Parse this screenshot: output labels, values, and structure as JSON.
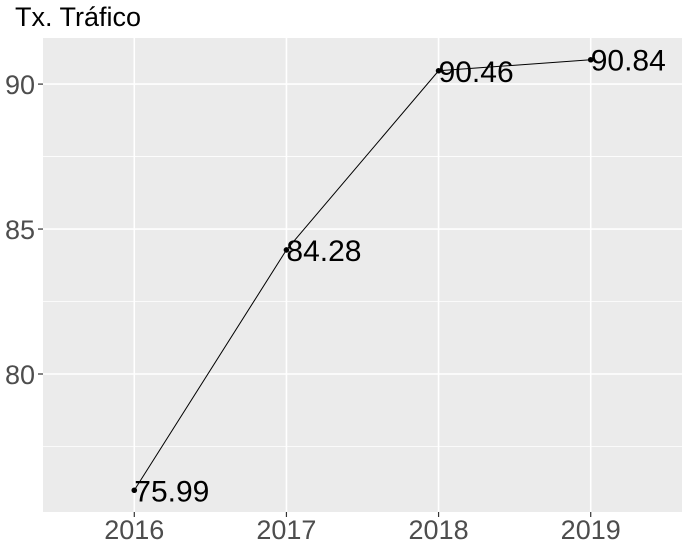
{
  "chart_data": {
    "type": "line",
    "title": "Tx. Tráfico",
    "xlabel": "",
    "ylabel": "",
    "categories": [
      "2016",
      "2017",
      "2018",
      "2019"
    ],
    "values": [
      75.99,
      84.28,
      90.46,
      90.84
    ],
    "data_labels": [
      "75.99",
      "84.28",
      "90.46",
      "90.84"
    ],
    "y_ticks": [
      80,
      85,
      90
    ],
    "y_tick_labels": [
      "80",
      "85",
      "90"
    ],
    "ylim": [
      75.24,
      91.59
    ],
    "grid": true,
    "legend": "none",
    "colors": {
      "panel": "#ebebeb",
      "grid": "#ffffff",
      "line": "#000000",
      "point": "#000000",
      "tick_text": "#4d4d4d"
    }
  }
}
